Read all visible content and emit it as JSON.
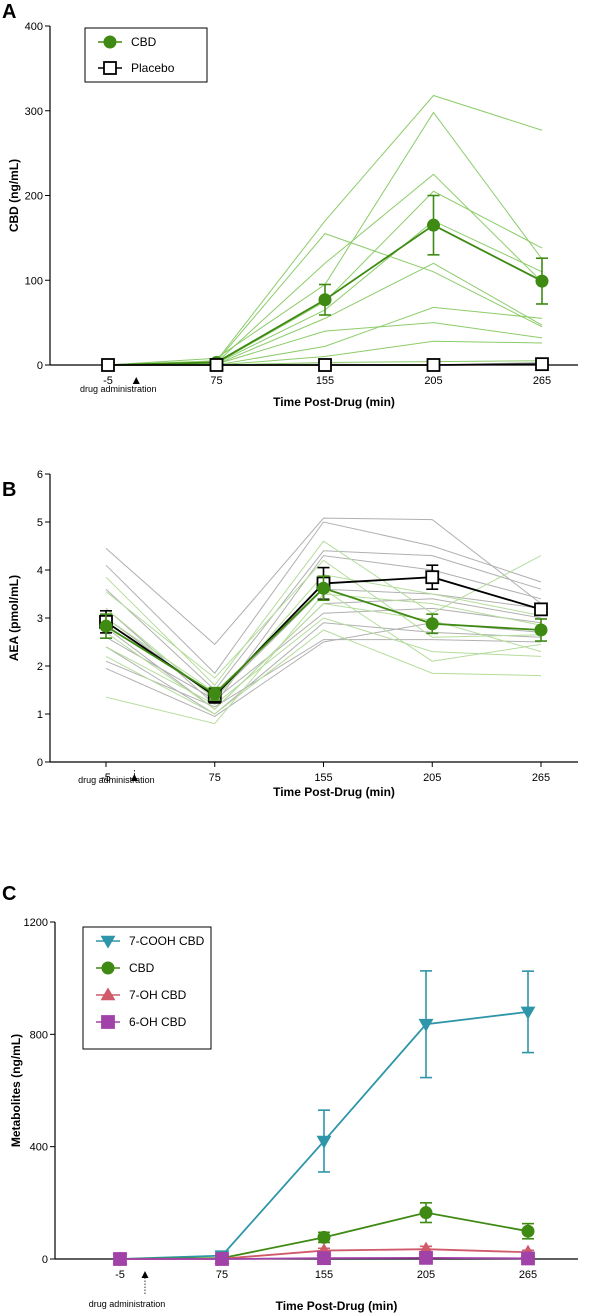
{
  "chart_data": [
    {
      "type": "line",
      "panel": "A",
      "xlabel": "Time Post-Drug (min)",
      "ylabel": "CBD (ng/mL)",
      "categories": [
        "-5",
        "75",
        "155",
        "205",
        "265"
      ],
      "ylim": [
        0,
        400
      ],
      "yticks": [
        "0",
        "100",
        "200",
        "300",
        "400"
      ],
      "annotation": "drug administration",
      "legend": {
        "placement": "top-left",
        "entries": [
          "CBD",
          "Placebo"
        ]
      },
      "colors": {
        "cbd": "#3e8a12",
        "cbd_individual": "#8ccc6a",
        "placebo": "#000000",
        "placebo_individual": "#b0b0b0"
      },
      "series": [
        {
          "name": "CBD",
          "values": [
            0,
            3,
            77,
            165,
            99
          ],
          "err": [
            0,
            2,
            18,
            35,
            27
          ],
          "marker": "circle"
        },
        {
          "name": "Placebo",
          "values": [
            0,
            0,
            0,
            0,
            1
          ],
          "err": [
            0,
            0,
            0,
            0,
            0
          ],
          "marker": "square"
        }
      ],
      "individual": [
        {
          "group": "cbd",
          "values": [
            0,
            5,
            170,
            318,
            277
          ]
        },
        {
          "group": "cbd",
          "values": [
            0,
            4,
            155,
            110,
            45
          ]
        },
        {
          "group": "cbd",
          "values": [
            0,
            8,
            95,
            298,
            125
          ]
        },
        {
          "group": "cbd",
          "values": [
            0,
            3,
            120,
            225,
            98
          ]
        },
        {
          "group": "cbd",
          "values": [
            0,
            2,
            75,
            205,
            138
          ]
        },
        {
          "group": "cbd",
          "values": [
            0,
            2,
            65,
            170,
            110
          ]
        },
        {
          "group": "cbd",
          "values": [
            0,
            1,
            55,
            120,
            47
          ]
        },
        {
          "group": "cbd",
          "values": [
            0,
            1,
            40,
            50,
            32
          ]
        },
        {
          "group": "cbd",
          "values": [
            0,
            0,
            22,
            68,
            55
          ]
        },
        {
          "group": "cbd",
          "values": [
            0,
            0,
            10,
            28,
            26
          ]
        },
        {
          "group": "cbd",
          "values": [
            0,
            0,
            3,
            4,
            5
          ]
        },
        {
          "group": "placebo",
          "values": [
            0,
            0,
            0,
            0,
            3
          ]
        },
        {
          "group": "placebo",
          "values": [
            0,
            0,
            1,
            0,
            1
          ]
        }
      ]
    },
    {
      "type": "line",
      "panel": "B",
      "xlabel": "Time Post-Drug (min)",
      "ylabel": "AEA (pmol/mL)",
      "categories": [
        "-5",
        "75",
        "155",
        "205",
        "265"
      ],
      "ylim": [
        0,
        6
      ],
      "yticks": [
        "0",
        "1",
        "2",
        "3",
        "4",
        "5",
        "6"
      ],
      "annotation": "drug administration",
      "colors": {
        "cbd": "#3e8a12",
        "cbd_individual": "#b5dc9c",
        "placebo": "#000000",
        "placebo_individual": "#b0b0b0"
      },
      "series": [
        {
          "name": "Placebo",
          "values": [
            2.92,
            1.38,
            3.72,
            3.85,
            3.18
          ],
          "err": [
            0.23,
            0.15,
            0.33,
            0.25,
            0.1
          ],
          "marker": "square"
        },
        {
          "name": "CBD",
          "values": [
            2.83,
            1.42,
            3.62,
            2.88,
            2.75
          ],
          "err": [
            0.25,
            0.13,
            0.25,
            0.2,
            0.23
          ],
          "marker": "circle"
        }
      ],
      "individual": [
        {
          "group": "placebo",
          "values": [
            4.45,
            2.45,
            5.08,
            5.05,
            3.3
          ]
        },
        {
          "group": "placebo",
          "values": [
            4.1,
            1.85,
            5.0,
            4.5,
            3.75
          ]
        },
        {
          "group": "placebo",
          "values": [
            3.6,
            1.5,
            4.4,
            4.3,
            3.6
          ]
        },
        {
          "group": "placebo",
          "values": [
            3.2,
            1.2,
            4.3,
            4.0,
            3.4
          ]
        },
        {
          "group": "placebo",
          "values": [
            3.0,
            1.35,
            3.6,
            3.5,
            3.2
          ]
        },
        {
          "group": "placebo",
          "values": [
            2.8,
            1.1,
            3.3,
            3.4,
            3.0
          ]
        },
        {
          "group": "placebo",
          "values": [
            2.6,
            1.3,
            3.1,
            3.2,
            2.9
          ]
        },
        {
          "group": "placebo",
          "values": [
            2.4,
            1.0,
            2.9,
            2.7,
            2.6
          ]
        },
        {
          "group": "placebo",
          "values": [
            2.1,
            1.15,
            2.55,
            2.55,
            2.5
          ]
        },
        {
          "group": "placebo",
          "values": [
            1.95,
            0.95,
            2.5,
            2.9,
            2.7
          ]
        },
        {
          "group": "cbd",
          "values": [
            3.85,
            1.6,
            4.6,
            3.1,
            4.3
          ]
        },
        {
          "group": "cbd",
          "values": [
            3.55,
            1.75,
            4.2,
            2.6,
            2.65
          ]
        },
        {
          "group": "cbd",
          "values": [
            3.2,
            1.3,
            3.9,
            3.5,
            3.05
          ]
        },
        {
          "group": "cbd",
          "values": [
            3.0,
            1.45,
            3.6,
            2.1,
            2.45
          ]
        },
        {
          "group": "cbd",
          "values": [
            2.7,
            1.1,
            3.3,
            2.95,
            2.3
          ]
        },
        {
          "group": "cbd",
          "values": [
            2.4,
            1.2,
            3.0,
            2.3,
            2.2
          ]
        },
        {
          "group": "cbd",
          "values": [
            2.2,
            1.0,
            2.75,
            1.85,
            1.8
          ]
        },
        {
          "group": "cbd",
          "values": [
            1.35,
            0.8,
            3.5,
            3.3,
            2.85
          ]
        }
      ]
    },
    {
      "type": "line",
      "panel": "C",
      "xlabel": "Time Post-Drug (min)",
      "ylabel": "Metabolites (ng/mL)",
      "categories": [
        "-5",
        "75",
        "155",
        "205",
        "265"
      ],
      "ylim": [
        0,
        1200
      ],
      "yticks": [
        "0",
        "400",
        "800",
        "1200"
      ],
      "annotation": "drug administration",
      "legend": {
        "placement": "top-left",
        "entries": [
          "7-COOH CBD",
          "CBD",
          "7-OH CBD",
          "6-OH CBD"
        ]
      },
      "series": [
        {
          "name": "7-COOH CBD",
          "values": [
            0,
            12,
            420,
            836,
            880
          ],
          "err": [
            0,
            4,
            110,
            190,
            145
          ],
          "marker": "triangle-down",
          "color": "#2e96a8"
        },
        {
          "name": "CBD",
          "values": [
            0,
            3,
            77,
            165,
            99
          ],
          "err": [
            0,
            2,
            18,
            35,
            27
          ],
          "marker": "circle",
          "color": "#3e8a12"
        },
        {
          "name": "7-OH CBD",
          "values": [
            0,
            1,
            30,
            35,
            24
          ],
          "err": [
            0,
            1,
            8,
            10,
            7
          ],
          "marker": "triangle-up",
          "color": "#d05a6a"
        },
        {
          "name": "6-OH CBD",
          "values": [
            0,
            0,
            3,
            4,
            2
          ],
          "err": [
            0,
            0,
            1,
            1,
            1
          ],
          "marker": "square",
          "color": "#a042a8"
        }
      ]
    }
  ]
}
